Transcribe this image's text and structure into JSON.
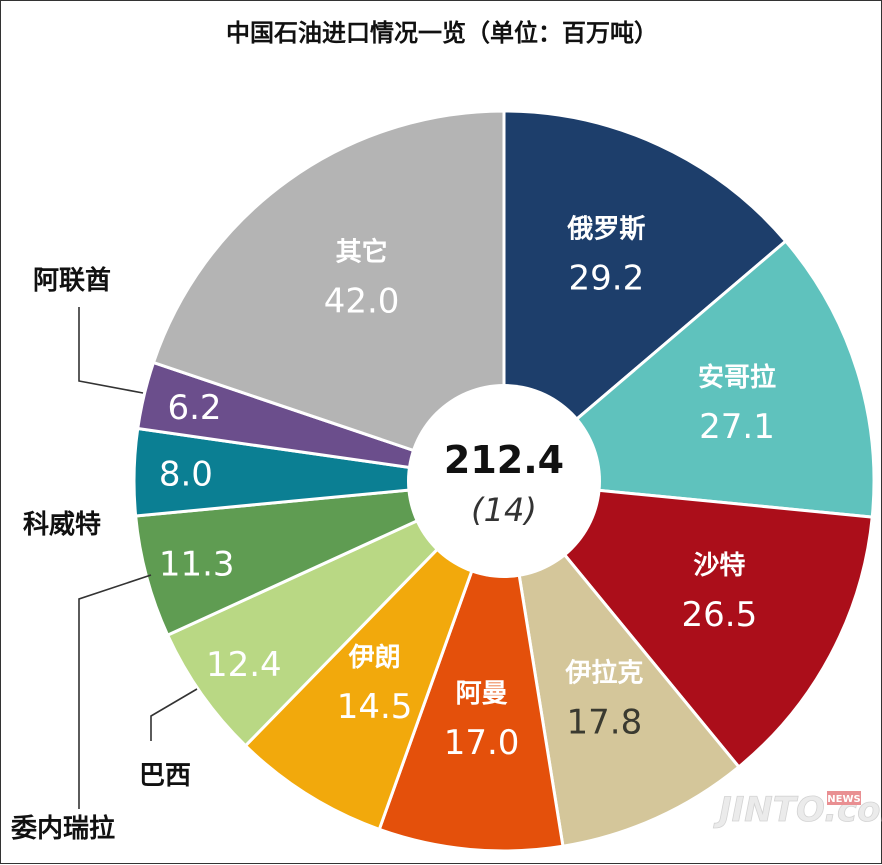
{
  "chart_data": {
    "type": "pie",
    "style": "donut",
    "title": "中国石油进口情况一览（单位：百万吨）",
    "center": {
      "total": "212.4",
      "note": "(14)"
    },
    "slices": [
      {
        "name": "俄罗斯",
        "value": 29.2,
        "color": "#1d3e6b",
        "text_color": "#ffffff",
        "label_inside": true
      },
      {
        "name": "安哥拉",
        "value": 27.1,
        "color": "#5fc2bd",
        "text_color": "#ffffff",
        "label_inside": true
      },
      {
        "name": "沙特",
        "value": 26.5,
        "color": "#ab0e1a",
        "text_color": "#ffffff",
        "label_inside": true
      },
      {
        "name": "伊拉克",
        "value": 17.8,
        "color": "#d4c69a",
        "text_color": "#ffffff",
        "value_color": "#3a3a30",
        "label_inside": true
      },
      {
        "name": "阿曼",
        "value": 17.0,
        "color": "#e4500b",
        "text_color": "#ffffff",
        "label_inside": true
      },
      {
        "name": "伊朗",
        "value": 14.5,
        "color": "#f2a90c",
        "text_color": "#ffffff",
        "label_inside": true
      },
      {
        "name": "巴西",
        "value": 12.4,
        "color": "#b9d884",
        "text_color": "#ffffff",
        "label_inside": false
      },
      {
        "name": "委内瑞拉",
        "value": 11.3,
        "color": "#5f9c52",
        "text_color": "#ffffff",
        "label_inside": false
      },
      {
        "name": "科威特",
        "value": 8.0,
        "color": "#0b7f93",
        "text_color": "#ffffff",
        "label_inside": false
      },
      {
        "name": "阿联酋",
        "value": 6.2,
        "color": "#6b4e8c",
        "text_color": "#ffffff",
        "label_inside": false
      },
      {
        "name": "其它",
        "value": 42.0,
        "color": "#b4b4b4",
        "text_color": "#ffffff",
        "label_inside": true
      }
    ],
    "legend": "none"
  },
  "watermark": {
    "text": "JINTO.com",
    "badge": "NEWS"
  }
}
